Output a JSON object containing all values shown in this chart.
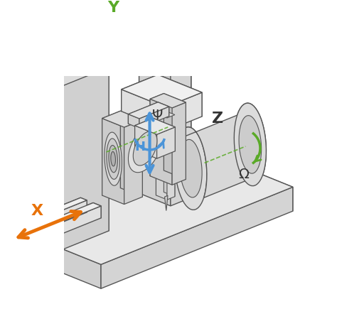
{
  "background_color": "#ffffff",
  "edge_color": "#555555",
  "face_colors": {
    "light": "#f0f0f0",
    "mid_light": "#e0e0e0",
    "mid": "#d4d4d4",
    "mid_dark": "#c8c8c8",
    "dark": "#b8b8b8"
  },
  "arrows": {
    "X": {
      "color": "#e8720a"
    },
    "Y": {
      "color": "#5aaa28"
    },
    "Z": {
      "color": "#4b94d8"
    },
    "H": {
      "color": "#4b94d8"
    },
    "Psi": {
      "color": "#4b94d8"
    },
    "Omega": {
      "color": "#5aaa28"
    }
  },
  "figsize": [
    4.74,
    4.73
  ],
  "dpi": 100
}
